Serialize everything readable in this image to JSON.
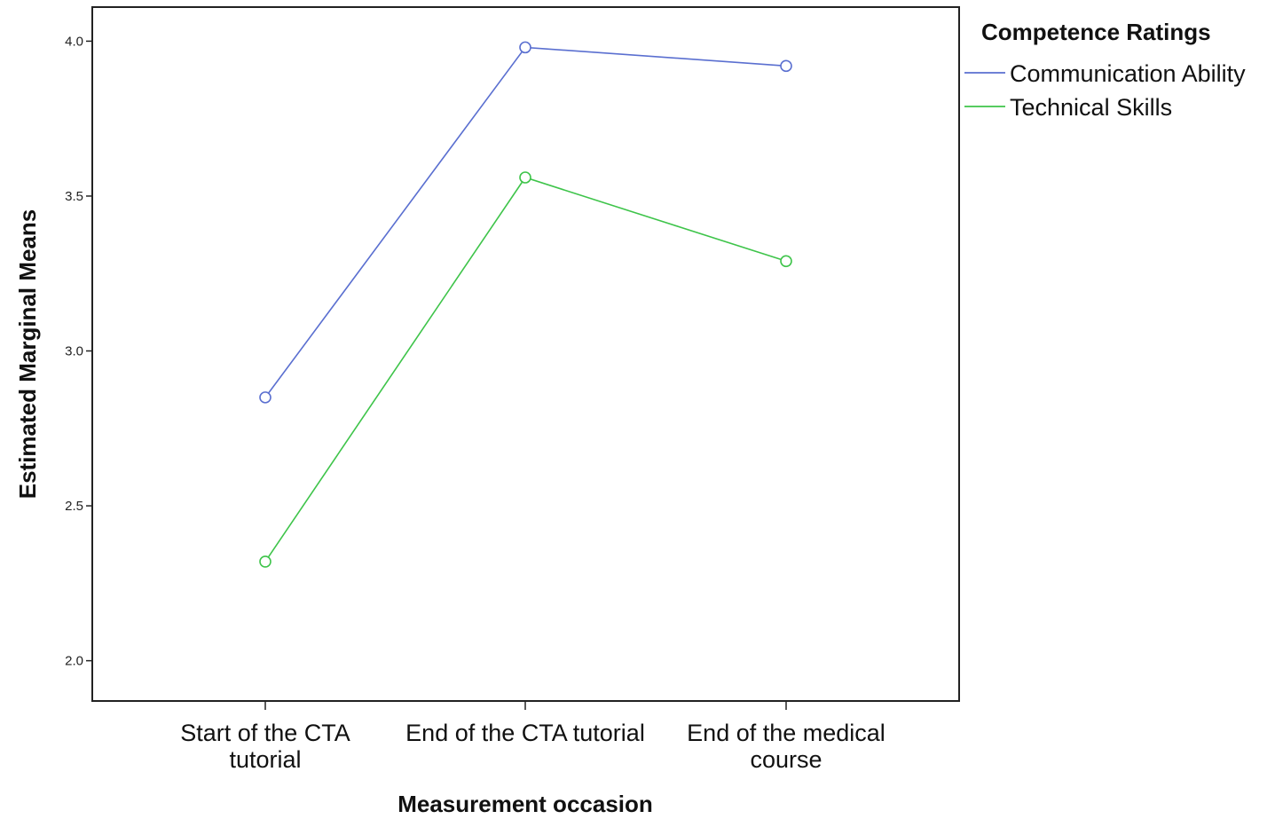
{
  "chart_data": {
    "type": "line",
    "title": "",
    "xlabel": "Measurement occasion",
    "ylabel": "Estimated Marginal Means",
    "categories": [
      [
        "Start of the CTA",
        "tutorial"
      ],
      [
        "End of the CTA tutorial"
      ],
      [
        "End of the medical",
        "course"
      ]
    ],
    "ylim": [
      1.87,
      4.11
    ],
    "yticks": [
      2.0,
      2.5,
      3.0,
      3.5,
      4.0
    ],
    "ytick_labels": [
      "2.0",
      "2.5",
      "3.0",
      "3.5",
      "4.0"
    ],
    "grid": false,
    "legend": {
      "title": "Competence Ratings",
      "placement": "right"
    },
    "series": [
      {
        "name": "Communication Ability",
        "color": "#5a6fd0",
        "marker": "open-circle",
        "values": [
          2.85,
          3.98,
          3.92
        ]
      },
      {
        "name": "Technical Skills",
        "color": "#3ec44a",
        "marker": "open-circle",
        "values": [
          2.32,
          3.56,
          3.29
        ]
      }
    ]
  }
}
